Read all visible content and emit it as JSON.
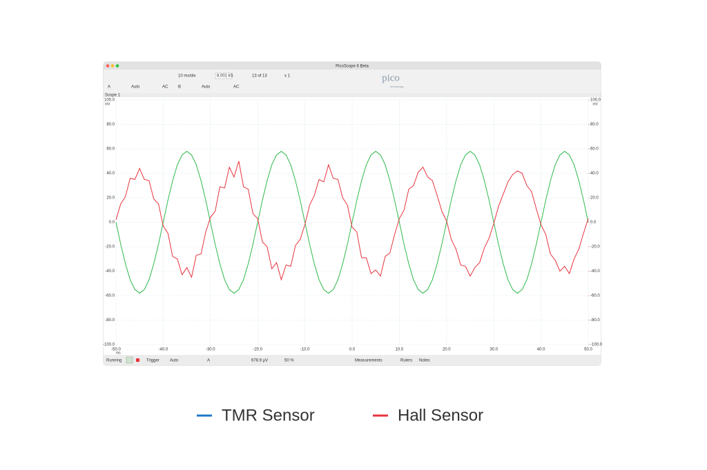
{
  "window": {
    "title": "PicoScope 6 Beta",
    "tab": "Scope 1",
    "toolbar": [
      "10 ms/div",
      "8.001 kS",
      "13 of 13",
      "x 1",
      "A",
      "Auto",
      "AC",
      "B",
      "Auto",
      "AC"
    ],
    "logo": "pico",
    "logo_sub": "technology",
    "statusbar": [
      "Running",
      "Trigger",
      "Auto",
      "A",
      "678.9 µV",
      "50 %",
      "Measurements",
      "Rulers",
      "Notes"
    ]
  },
  "chart_data": {
    "type": "line",
    "y_unit": "mV",
    "y2_unit": "mV",
    "x_unit": "ms",
    "x": [
      -50,
      -49,
      -48,
      -47,
      -46,
      -45,
      -44,
      -43,
      -42,
      -41,
      -40,
      -39,
      -38,
      -37,
      -36,
      -35,
      -34,
      -33,
      -32,
      -31,
      -30,
      -29,
      -28,
      -27,
      -26,
      -25,
      -24,
      -23,
      -22,
      -21,
      -20,
      -19,
      -18,
      -17,
      -16,
      -15,
      -14,
      -13,
      -12,
      -11,
      -10,
      -9,
      -8,
      -7,
      -6,
      -5,
      -4,
      -3,
      -2,
      -1,
      0,
      1,
      2,
      3,
      4,
      5,
      6,
      7,
      8,
      9,
      10,
      11,
      12,
      13,
      14,
      15,
      16,
      17,
      18,
      19,
      20,
      21,
      22,
      23,
      24,
      25,
      26,
      27,
      28,
      29,
      30,
      31,
      32,
      33,
      34,
      35,
      36,
      37,
      38,
      39,
      40,
      41,
      42,
      43,
      44,
      45,
      46,
      47,
      48,
      49,
      50
    ],
    "series": [
      {
        "name": "TMR Sensor",
        "color": "#2eb84a",
        "legend_color": "#1f78c8",
        "values": [
          0,
          -18,
          -34,
          -47,
          -55,
          -58,
          -55,
          -47,
          -34,
          -18,
          0,
          18,
          34,
          47,
          55,
          58,
          55,
          47,
          34,
          18,
          0,
          -18,
          -34,
          -47,
          -55,
          -58,
          -55,
          -47,
          -34,
          -18,
          0,
          18,
          34,
          47,
          55,
          58,
          55,
          47,
          34,
          18,
          0,
          -18,
          -34,
          -47,
          -55,
          -58,
          -55,
          -47,
          -34,
          -18,
          0,
          18,
          34,
          47,
          55,
          58,
          55,
          47,
          34,
          18,
          0,
          -18,
          -34,
          -47,
          -55,
          -58,
          -55,
          -47,
          -34,
          -18,
          0,
          18,
          34,
          47,
          55,
          58,
          55,
          47,
          34,
          18,
          0,
          -18,
          -34,
          -47,
          -55,
          -58,
          -55,
          -47,
          -34,
          -18,
          0,
          18,
          34,
          47,
          55,
          58,
          55,
          47,
          34,
          18,
          0
        ]
      },
      {
        "name": "Hall Sensor",
        "color": "#e8333c",
        "legend_color": "#e8333c",
        "axis": "y2",
        "values": [
          2,
          15,
          21,
          36,
          35,
          44,
          35,
          34,
          19,
          15,
          -3,
          -9,
          -28,
          -30,
          -43,
          -37,
          -45,
          -27,
          -26,
          -8,
          4,
          9,
          29,
          28,
          45,
          37,
          50,
          29,
          27,
          7,
          3,
          -16,
          -20,
          -38,
          -33,
          -47,
          -35,
          -36,
          -19,
          -14,
          -2,
          14,
          22,
          35,
          33,
          47,
          36,
          35,
          20,
          14,
          -4,
          -8,
          -29,
          -29,
          -42,
          -39,
          -44,
          -28,
          -25,
          -10,
          3,
          10,
          27,
          30,
          41,
          45,
          37,
          34,
          22,
          9,
          1,
          -14,
          -22,
          -35,
          -36,
          -44,
          -37,
          -33,
          -21,
          -13,
          -1,
          13,
          23,
          33,
          39,
          42,
          40,
          30,
          25,
          11,
          -2,
          -10,
          -26,
          -31,
          -40,
          -36,
          -42,
          -30,
          -22,
          -9,
          3
        ]
      }
    ],
    "xlim": [
      -50,
      50
    ],
    "xticks": [
      {
        "value": -50,
        "label": "-50.0"
      },
      {
        "value": -40,
        "label": "-40.0"
      },
      {
        "value": -30,
        "label": "-30.0"
      },
      {
        "value": -20,
        "label": "-20.0"
      },
      {
        "value": -10,
        "label": "-10.0"
      },
      {
        "value": 0,
        "label": "0.0"
      },
      {
        "value": 10,
        "label": "10.0"
      },
      {
        "value": 20,
        "label": "20.0"
      },
      {
        "value": 30,
        "label": "30.0"
      },
      {
        "value": 40,
        "label": "40.0"
      },
      {
        "value": 50,
        "label": "50.0"
      }
    ],
    "ylim": [
      -100,
      100
    ],
    "yticks": [
      {
        "value": -100,
        "label": "-100.0"
      },
      {
        "value": -80,
        "label": "-80.0"
      },
      {
        "value": -60,
        "label": "-60.0"
      },
      {
        "value": -40,
        "label": "-40.0"
      },
      {
        "value": -20,
        "label": "-20.0"
      },
      {
        "value": 0,
        "label": "0.0"
      },
      {
        "value": 20,
        "label": "20.0"
      },
      {
        "value": 40,
        "label": "40.0"
      },
      {
        "value": 60,
        "label": "60.0"
      },
      {
        "value": 80,
        "label": "80.0"
      },
      {
        "value": 100,
        "label": "100.0"
      }
    ],
    "y2lim": [
      -100,
      100
    ],
    "y2ticks": [
      {
        "value": -100,
        "label": "-100.0"
      },
      {
        "value": -80,
        "label": "-80.0"
      },
      {
        "value": -60,
        "label": "-60.0"
      },
      {
        "value": -40,
        "label": "-40.0"
      },
      {
        "value": -20,
        "label": "-20.0"
      },
      {
        "value": 0,
        "label": "0.0"
      },
      {
        "value": 20,
        "label": "20.0"
      },
      {
        "value": 40,
        "label": "40.0"
      },
      {
        "value": 60,
        "label": "60.0"
      },
      {
        "value": 80,
        "label": "80.0"
      },
      {
        "value": 100,
        "label": "100.0"
      }
    ],
    "grid": true
  }
}
